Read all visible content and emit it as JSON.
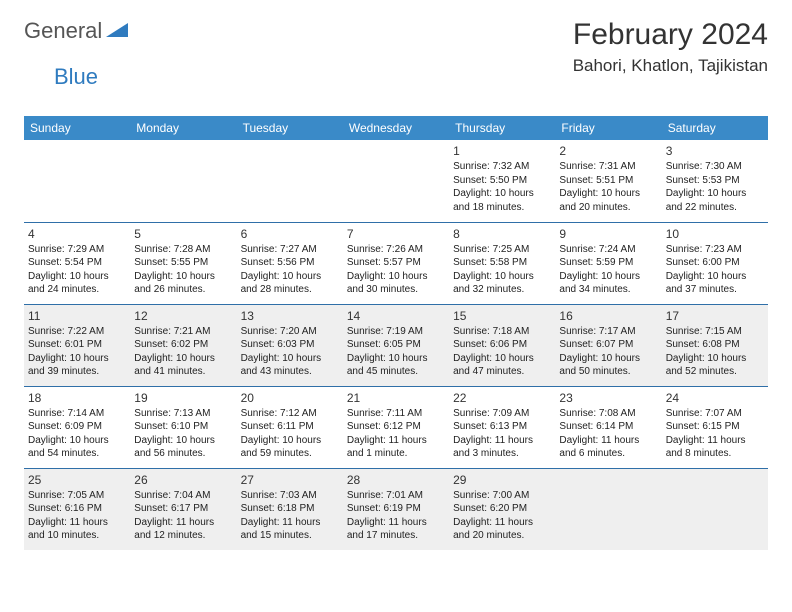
{
  "brand": {
    "word1": "General",
    "word2": "Blue"
  },
  "title": "February 2024",
  "location": "Bahori, Khatlon, Tajikistan",
  "colors": {
    "header_bg": "#3a8ac8",
    "header_text": "#ffffff",
    "row_border": "#2f6fa8",
    "alt_row_bg": "#efefef",
    "text": "#222222",
    "logo_gray": "#555555",
    "logo_blue": "#2f7bbf"
  },
  "typography": {
    "title_fontsize": 30,
    "location_fontsize": 17,
    "header_fontsize": 12,
    "daynum_fontsize": 12,
    "cell_fontsize": 10
  },
  "dayHeaders": [
    "Sunday",
    "Monday",
    "Tuesday",
    "Wednesday",
    "Thursday",
    "Friday",
    "Saturday"
  ],
  "weeks": [
    {
      "alt": false,
      "days": [
        null,
        null,
        null,
        null,
        {
          "n": "1",
          "sunrise": "7:32 AM",
          "sunset": "5:50 PM",
          "dlh": "10",
          "dlm": "18"
        },
        {
          "n": "2",
          "sunrise": "7:31 AM",
          "sunset": "5:51 PM",
          "dlh": "10",
          "dlm": "20"
        },
        {
          "n": "3",
          "sunrise": "7:30 AM",
          "sunset": "5:53 PM",
          "dlh": "10",
          "dlm": "22"
        }
      ]
    },
    {
      "alt": false,
      "days": [
        {
          "n": "4",
          "sunrise": "7:29 AM",
          "sunset": "5:54 PM",
          "dlh": "10",
          "dlm": "24"
        },
        {
          "n": "5",
          "sunrise": "7:28 AM",
          "sunset": "5:55 PM",
          "dlh": "10",
          "dlm": "26"
        },
        {
          "n": "6",
          "sunrise": "7:27 AM",
          "sunset": "5:56 PM",
          "dlh": "10",
          "dlm": "28"
        },
        {
          "n": "7",
          "sunrise": "7:26 AM",
          "sunset": "5:57 PM",
          "dlh": "10",
          "dlm": "30"
        },
        {
          "n": "8",
          "sunrise": "7:25 AM",
          "sunset": "5:58 PM",
          "dlh": "10",
          "dlm": "32"
        },
        {
          "n": "9",
          "sunrise": "7:24 AM",
          "sunset": "5:59 PM",
          "dlh": "10",
          "dlm": "34"
        },
        {
          "n": "10",
          "sunrise": "7:23 AM",
          "sunset": "6:00 PM",
          "dlh": "10",
          "dlm": "37"
        }
      ]
    },
    {
      "alt": true,
      "days": [
        {
          "n": "11",
          "sunrise": "7:22 AM",
          "sunset": "6:01 PM",
          "dlh": "10",
          "dlm": "39"
        },
        {
          "n": "12",
          "sunrise": "7:21 AM",
          "sunset": "6:02 PM",
          "dlh": "10",
          "dlm": "41"
        },
        {
          "n": "13",
          "sunrise": "7:20 AM",
          "sunset": "6:03 PM",
          "dlh": "10",
          "dlm": "43"
        },
        {
          "n": "14",
          "sunrise": "7:19 AM",
          "sunset": "6:05 PM",
          "dlh": "10",
          "dlm": "45"
        },
        {
          "n": "15",
          "sunrise": "7:18 AM",
          "sunset": "6:06 PM",
          "dlh": "10",
          "dlm": "47"
        },
        {
          "n": "16",
          "sunrise": "7:17 AM",
          "sunset": "6:07 PM",
          "dlh": "10",
          "dlm": "50"
        },
        {
          "n": "17",
          "sunrise": "7:15 AM",
          "sunset": "6:08 PM",
          "dlh": "10",
          "dlm": "52"
        }
      ]
    },
    {
      "alt": false,
      "days": [
        {
          "n": "18",
          "sunrise": "7:14 AM",
          "sunset": "6:09 PM",
          "dlh": "10",
          "dlm": "54"
        },
        {
          "n": "19",
          "sunrise": "7:13 AM",
          "sunset": "6:10 PM",
          "dlh": "10",
          "dlm": "56"
        },
        {
          "n": "20",
          "sunrise": "7:12 AM",
          "sunset": "6:11 PM",
          "dlh": "10",
          "dlm": "59"
        },
        {
          "n": "21",
          "sunrise": "7:11 AM",
          "sunset": "6:12 PM",
          "dlh": "11",
          "dlm": "1",
          "singular": true
        },
        {
          "n": "22",
          "sunrise": "7:09 AM",
          "sunset": "6:13 PM",
          "dlh": "11",
          "dlm": "3"
        },
        {
          "n": "23",
          "sunrise": "7:08 AM",
          "sunset": "6:14 PM",
          "dlh": "11",
          "dlm": "6"
        },
        {
          "n": "24",
          "sunrise": "7:07 AM",
          "sunset": "6:15 PM",
          "dlh": "11",
          "dlm": "8"
        }
      ]
    },
    {
      "alt": true,
      "days": [
        {
          "n": "25",
          "sunrise": "7:05 AM",
          "sunset": "6:16 PM",
          "dlh": "11",
          "dlm": "10"
        },
        {
          "n": "26",
          "sunrise": "7:04 AM",
          "sunset": "6:17 PM",
          "dlh": "11",
          "dlm": "12"
        },
        {
          "n": "27",
          "sunrise": "7:03 AM",
          "sunset": "6:18 PM",
          "dlh": "11",
          "dlm": "15"
        },
        {
          "n": "28",
          "sunrise": "7:01 AM",
          "sunset": "6:19 PM",
          "dlh": "11",
          "dlm": "17"
        },
        {
          "n": "29",
          "sunrise": "7:00 AM",
          "sunset": "6:20 PM",
          "dlh": "11",
          "dlm": "20"
        },
        null,
        null
      ]
    }
  ],
  "labels": {
    "sunrise": "Sunrise:",
    "sunset": "Sunset:",
    "daylight": "Daylight:",
    "hours": "hours",
    "and": "and",
    "minutes": "minutes.",
    "minute": "minute."
  }
}
